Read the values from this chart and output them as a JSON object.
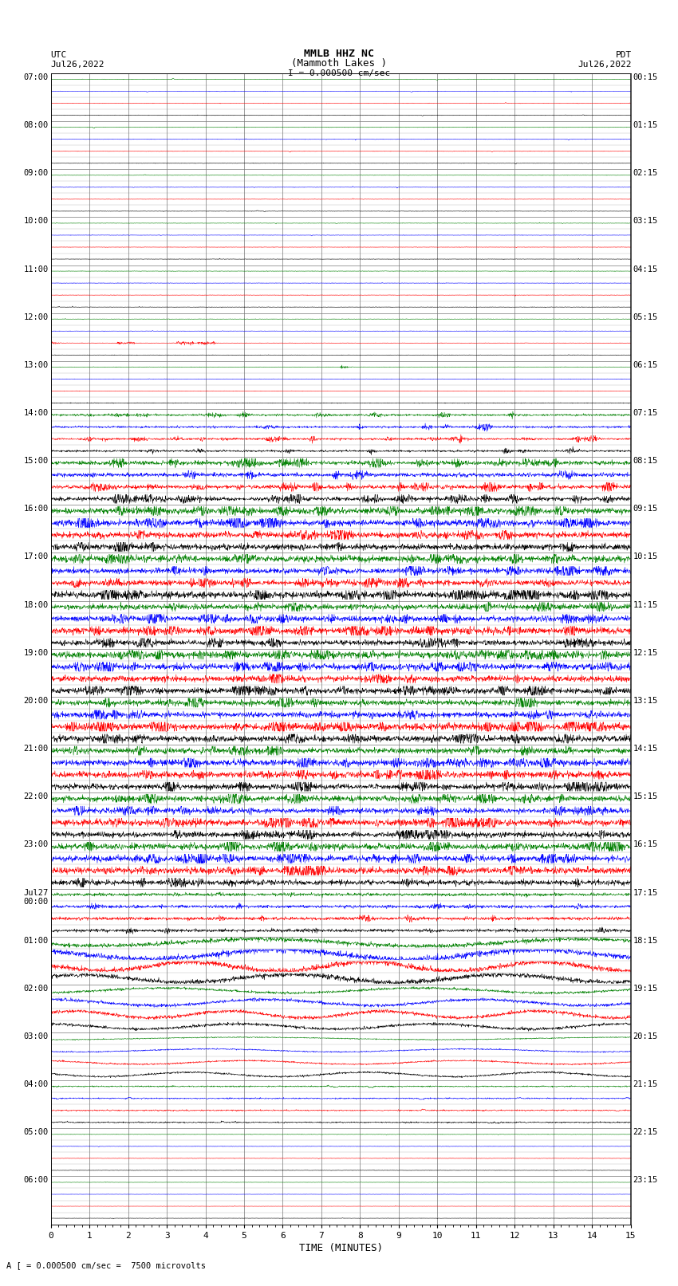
{
  "title_line1": "MMLB HHZ NC",
  "title_line2": "(Mammoth Lakes )",
  "title_line3": "I = 0.000500 cm/sec",
  "left_label_top": "UTC",
  "left_label_date": "Jul26,2022",
  "right_label_top": "PDT",
  "right_label_date": "Jul26,2022",
  "bottom_label": "TIME (MINUTES)",
  "bottom_note": "A [ = 0.000500 cm/sec =  7500 microvolts",
  "xlabel_ticks": [
    0,
    1,
    2,
    3,
    4,
    5,
    6,
    7,
    8,
    9,
    10,
    11,
    12,
    13,
    14,
    15
  ],
  "utc_labels": [
    "07:00",
    "08:00",
    "09:00",
    "10:00",
    "11:00",
    "12:00",
    "13:00",
    "14:00",
    "15:00",
    "16:00",
    "17:00",
    "18:00",
    "19:00",
    "20:00",
    "21:00",
    "22:00",
    "23:00",
    "Jul27\n00:00",
    "01:00",
    "02:00",
    "03:00",
    "04:00",
    "05:00",
    "06:00"
  ],
  "pdt_labels": [
    "00:15",
    "01:15",
    "02:15",
    "03:15",
    "04:15",
    "05:15",
    "06:15",
    "07:15",
    "08:15",
    "09:15",
    "10:15",
    "11:15",
    "12:15",
    "13:15",
    "14:15",
    "15:15",
    "16:15",
    "17:15",
    "18:15",
    "19:15",
    "20:15",
    "21:15",
    "22:15",
    "23:15"
  ],
  "n_rows": 24,
  "traces_per_row": 4,
  "colors": [
    "black",
    "red",
    "blue",
    "green"
  ],
  "bg_color": "#ffffff",
  "n_minutes": 15,
  "n_points": 2000
}
